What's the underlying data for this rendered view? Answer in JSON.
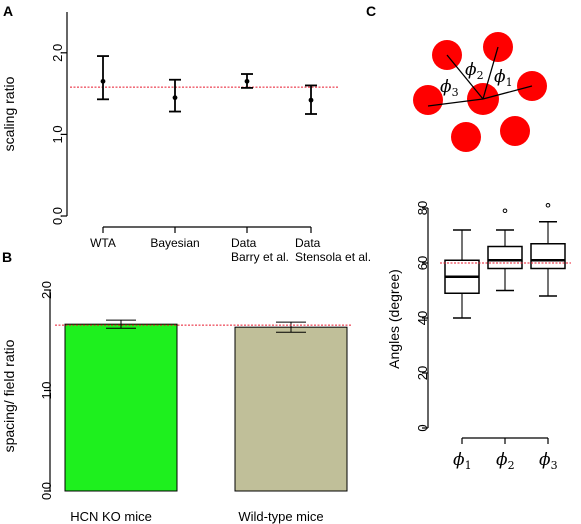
{
  "panels": {
    "a": "A",
    "b": "B",
    "c": "C"
  },
  "diagram": {
    "phi_symbol": "ϕ",
    "angle_subscripts": [
      "1",
      "2",
      "3"
    ]
  },
  "chart_data": [
    {
      "type": "scatter",
      "panel": "A",
      "title": "",
      "ylabel": "scaling ratio",
      "ylim": [
        0,
        2.5
      ],
      "yticks": [
        "0.0",
        "1.0",
        "2.0"
      ],
      "ytick_values": [
        0.0,
        1.0,
        2.0
      ],
      "categories": [
        {
          "lines": [
            "WTA"
          ]
        },
        {
          "lines": [
            "Bayesian"
          ]
        },
        {
          "lines": [
            "Data",
            "Barry et al."
          ]
        },
        {
          "lines": [
            "Data",
            "Stensola et al."
          ]
        }
      ],
      "values": [
        1.65,
        1.45,
        1.65,
        1.42
      ],
      "error_low": [
        1.43,
        1.28,
        1.57,
        1.25
      ],
      "error_high": [
        1.96,
        1.67,
        1.74,
        1.6
      ],
      "reference_line": 1.58,
      "reference_color": "#e8182c"
    },
    {
      "type": "bar",
      "panel": "B",
      "title": "",
      "ylabel": "spacing/ field ratio",
      "ylim": [
        0,
        2.0
      ],
      "yticks": [
        "0.0",
        "1.0",
        "2.0"
      ],
      "ytick_values": [
        0.0,
        1.0,
        2.0
      ],
      "categories": [
        "HCN KO mice",
        "Wild-type mice"
      ],
      "values": [
        1.66,
        1.63
      ],
      "error_low": [
        1.62,
        1.58
      ],
      "error_high": [
        1.7,
        1.68
      ],
      "colors": [
        "#1ef01e",
        "#c0bf99"
      ],
      "reference_line": 1.65,
      "reference_color": "#e8182c"
    },
    {
      "type": "box",
      "panel": "C",
      "title": "",
      "ylabel": "Angles (degree)",
      "ylim": [
        0,
        80
      ],
      "yticks": [
        "0",
        "20",
        "40",
        "60",
        "80"
      ],
      "ytick_values": [
        0,
        20,
        40,
        60,
        80
      ],
      "categories": [
        "1",
        "2",
        "3"
      ],
      "boxes": [
        {
          "whisker_low": 40,
          "q1": 49,
          "median": 55,
          "q3": 61,
          "whisker_high": 72,
          "outliers": []
        },
        {
          "whisker_low": 50,
          "q1": 58,
          "median": 61,
          "q3": 66,
          "whisker_high": 72,
          "outliers": [
            79
          ]
        },
        {
          "whisker_low": 48,
          "q1": 58,
          "median": 61,
          "q3": 67,
          "whisker_high": 75,
          "outliers": [
            81
          ]
        }
      ],
      "reference_line": 60,
      "reference_color": "#e8182c"
    }
  ]
}
